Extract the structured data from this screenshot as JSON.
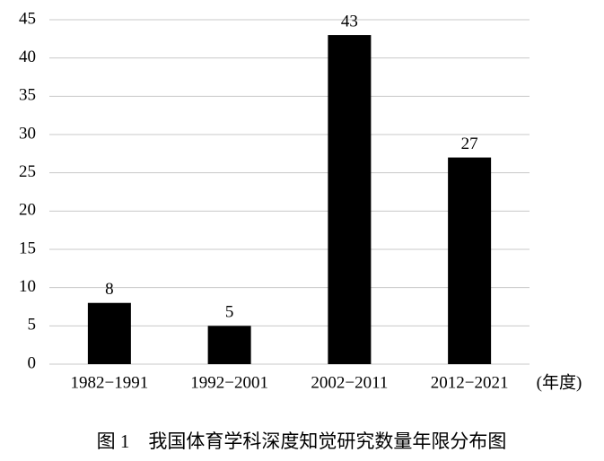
{
  "chart_data": {
    "type": "bar",
    "title": "图 1　我国体育学科深度知觉研究数量年限分布图",
    "x_label": "(年度)",
    "categories": [
      "1982−1991",
      "1992−2001",
      "2002−2011",
      "2012−2021"
    ],
    "values": [
      8,
      5,
      43,
      27
    ],
    "color": "#000000",
    "ylim": [
      0,
      45
    ],
    "yticks": [
      0,
      5,
      10,
      15,
      20,
      25,
      30,
      35,
      40,
      45
    ],
    "grid": true,
    "data_labels": true
  }
}
